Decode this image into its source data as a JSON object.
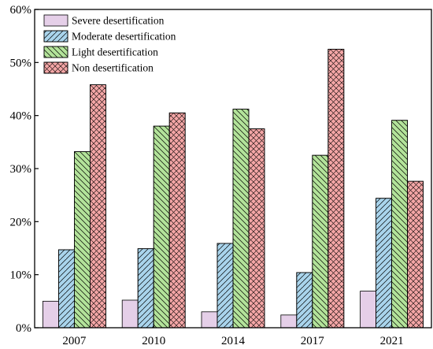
{
  "chart_data": {
    "type": "bar",
    "categories": [
      "2007",
      "2010",
      "2014",
      "2017",
      "2021"
    ],
    "series": [
      {
        "name": "Severe desertification",
        "values": [
          5.0,
          5.2,
          3.0,
          2.4,
          6.9
        ],
        "color": "#e5cfe8",
        "pattern": "none"
      },
      {
        "name": "Moderate desertification",
        "values": [
          14.7,
          14.9,
          15.9,
          10.4,
          24.4
        ],
        "color": "#a9d4ec",
        "pattern": "forward-diagonal"
      },
      {
        "name": "Light desertification",
        "values": [
          33.2,
          38.0,
          41.2,
          32.5,
          39.1
        ],
        "color": "#b3e39a",
        "pattern": "backward-diagonal"
      },
      {
        "name": "Non desertification",
        "values": [
          45.8,
          40.5,
          37.5,
          52.5,
          27.6
        ],
        "color": "#f4a6a6",
        "pattern": "crosshatch"
      }
    ],
    "yticks": [
      "0%",
      "10%",
      "20%",
      "30%",
      "40%",
      "50%",
      "60%"
    ],
    "ylim": [
      0,
      60
    ],
    "title": "",
    "xlabel": "",
    "ylabel": "",
    "grid": false,
    "legend_position": "top-left"
  }
}
